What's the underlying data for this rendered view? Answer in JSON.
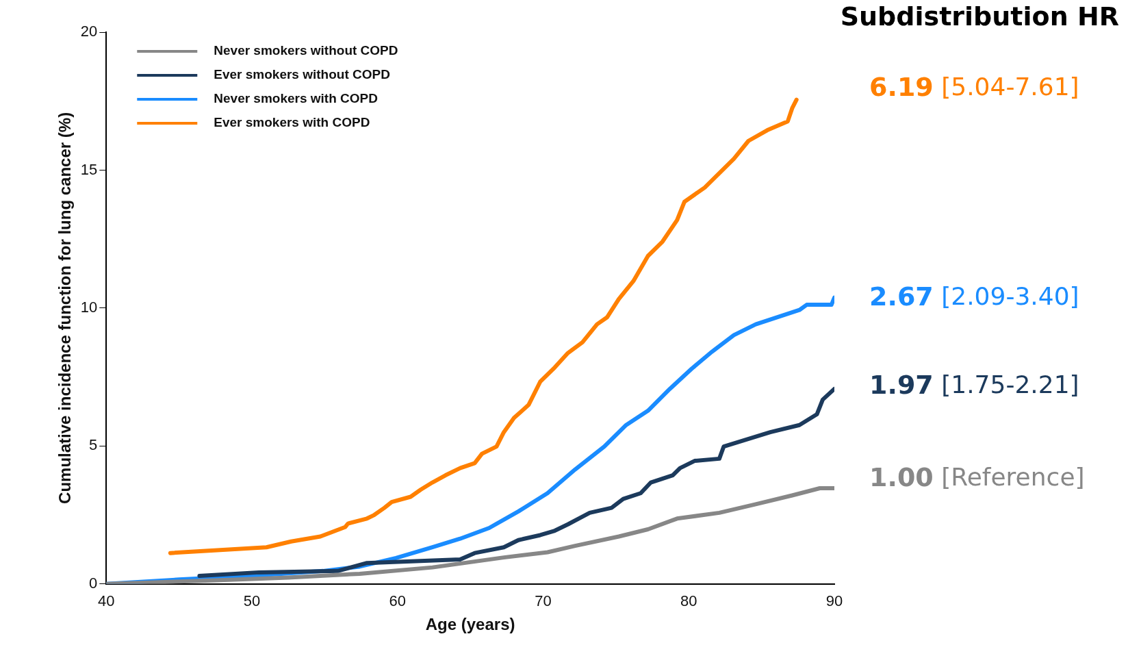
{
  "chart_data": {
    "type": "line",
    "title": "Subdistribution HR",
    "xlabel": "Age (years)",
    "ylabel": "Cumulative incidence function for lung cancer (%)",
    "xlim": [
      40,
      90
    ],
    "xticks": [
      40,
      50,
      60,
      70,
      80,
      90
    ],
    "ylim": [
      0,
      20
    ],
    "yticks": [
      0,
      5,
      10,
      15,
      20
    ],
    "grid": false,
    "legend": "top left",
    "marker": "none",
    "line_style": "solid",
    "series": [
      {
        "name": "Never smokers without COPD",
        "color": "#878787",
        "x": [
          40,
          47.5,
          52.5,
          57.4,
          62.4,
          67.3,
          70.3,
          72.2,
          75.2,
          77.2,
          79.2,
          82.1,
          84.6,
          87.1,
          89,
          90
        ],
        "values": [
          0,
          0.13,
          0.23,
          0.37,
          0.6,
          0.96,
          1.15,
          1.38,
          1.72,
          1.98,
          2.37,
          2.58,
          2.89,
          3.21,
          3.47,
          3.47
        ]
      },
      {
        "name": "Ever smokers without COPD",
        "color": "#1c3a5c",
        "x": [
          46.4,
          50.5,
          55.9,
          57.9,
          64.3,
          65.3,
          67.3,
          68.3,
          69.8,
          70.8,
          71.7,
          73.2,
          74.7,
          75.5,
          76.7,
          77.4,
          78.9,
          79.4,
          80.4,
          82.1,
          82.4,
          85.6,
          87.6,
          88.8,
          89.2,
          90
        ],
        "values": [
          0.29,
          0.42,
          0.47,
          0.76,
          0.89,
          1.12,
          1.33,
          1.59,
          1.77,
          1.93,
          2.16,
          2.58,
          2.76,
          3.08,
          3.29,
          3.68,
          3.94,
          4.2,
          4.46,
          4.54,
          4.98,
          5.5,
          5.76,
          6.15,
          6.68,
          7.07
        ]
      },
      {
        "name": "Never smokers with COPD",
        "color": "#1a8cff",
        "x": [
          40,
          45,
          50,
          54.9,
          57.4,
          59.9,
          62.4,
          64.3,
          66.3,
          68.3,
          70.3,
          72.2,
          74.2,
          75.7,
          77.2,
          78.7,
          80.2,
          81.6,
          83.1,
          84.6,
          86.1,
          87.6,
          88.1,
          89.8,
          90
        ],
        "values": [
          0,
          0.16,
          0.29,
          0.47,
          0.63,
          0.94,
          1.33,
          1.64,
          2.03,
          2.63,
          3.29,
          4.15,
          4.98,
          5.76,
          6.28,
          7.07,
          7.8,
          8.42,
          9.02,
          9.41,
          9.67,
          9.93,
          10.12,
          10.12,
          10.38
        ]
      },
      {
        "name": "Ever smokers with COPD",
        "color": "#ff8000",
        "x": [
          44.4,
          51,
          52.7,
          54.7,
          56.4,
          56.6,
          57.9,
          58.4,
          59.1,
          59.6,
          60.9,
          61.6,
          62.4,
          63.3,
          64.3,
          65.3,
          65.8,
          66.8,
          67.3,
          68,
          69,
          69.8,
          70.8,
          71.7,
          72.7,
          73.7,
          74.4,
          75.2,
          76.2,
          77.2,
          78.2,
          79.2,
          79.7,
          81.1,
          82.1,
          83.1,
          84.1,
          85.4,
          86.8,
          87.1,
          87.4
        ],
        "values": [
          1.12,
          1.33,
          1.54,
          1.72,
          2.06,
          2.19,
          2.37,
          2.5,
          2.76,
          2.97,
          3.16,
          3.42,
          3.68,
          3.94,
          4.2,
          4.38,
          4.72,
          4.98,
          5.5,
          6.02,
          6.49,
          7.33,
          7.85,
          8.37,
          8.76,
          9.41,
          9.67,
          10.33,
          10.98,
          11.89,
          12.41,
          13.19,
          13.85,
          14.37,
          14.89,
          15.41,
          16.06,
          16.45,
          16.77,
          17.24,
          17.55
        ]
      }
    ],
    "annotations": [
      "6.19 [5.04-7.61]",
      "2.67 [2.09-3.40]",
      "1.97 [1.75-2.21]",
      "1.00 [Reference]"
    ]
  }
}
